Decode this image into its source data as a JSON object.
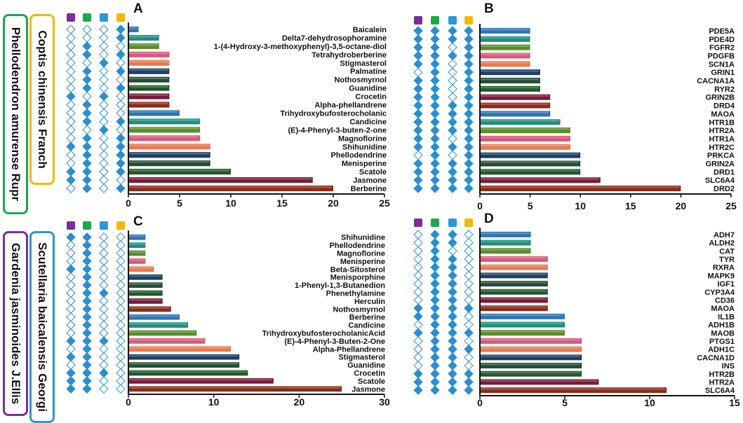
{
  "herb_labels": {
    "phellodendron": {
      "text": "Phellodendron amurense Rupr",
      "color": "#1aaa4a"
    },
    "coptis": {
      "text": "Coptis chinensis Franch",
      "color": "#f5b800"
    },
    "gardenia": {
      "text": "Gardenia jasminoides J.Ellis",
      "color": "#7b2e9a"
    },
    "scutellaria": {
      "text": "Scutellaria baicalensis Georgi",
      "color": "#2a98d8"
    }
  },
  "legend_colors": [
    "#7b2e9a",
    "#1aaa4a",
    "#2a98d8",
    "#f5b800"
  ],
  "marker_color": "#2a8fcf",
  "chart_data": [
    {
      "panel": "A",
      "type": "bar",
      "orientation": "horizontal",
      "xlim": [
        0,
        25
      ],
      "xticks": [
        0,
        5,
        10,
        15,
        20,
        25
      ],
      "categories": [
        "Baicalein",
        "Delta7-dehydrosophoramine",
        "1-(4-Hydroxy-3-methoxyphenyl)-3,5-octane-diol",
        "Tetrahydroberberine",
        "Stigmasterol",
        "Palmatine",
        "Nothosmyrnol",
        "Guanidine",
        "Crocetin",
        "Alpha-phellandrene",
        "Trihydroxybufosterocholanic",
        "Candicine",
        "(E)-4-Phenyl-3-buten-2-one",
        "Magnoflorine",
        "Shihunidine",
        "Phellodendrine",
        "Menisperine",
        "Scatole",
        "Jasmone",
        "Berberine"
      ],
      "values": [
        1,
        3,
        3,
        4,
        4,
        4,
        4,
        4,
        4,
        4,
        5,
        7,
        7,
        7,
        8,
        8,
        8,
        10,
        18,
        20
      ],
      "membership": [
        [
          0,
          0,
          0,
          1
        ],
        [
          0,
          0,
          0,
          1
        ],
        [
          0,
          1,
          0,
          0
        ],
        [
          0,
          1,
          0,
          1
        ],
        [
          0,
          0,
          1,
          0
        ],
        [
          0,
          1,
          0,
          1
        ],
        [
          0,
          1,
          0,
          0
        ],
        [
          0,
          1,
          0,
          1
        ],
        [
          1,
          0,
          1,
          0
        ],
        [
          0,
          1,
          0,
          0
        ],
        [
          0,
          1,
          0,
          0
        ],
        [
          0,
          1,
          0,
          1
        ],
        [
          0,
          0,
          1,
          0
        ],
        [
          0,
          1,
          0,
          1
        ],
        [
          1,
          1,
          0,
          1
        ],
        [
          0,
          1,
          0,
          1
        ],
        [
          0,
          1,
          0,
          1
        ],
        [
          1,
          1,
          0,
          1
        ],
        [
          1,
          1,
          0,
          0
        ],
        [
          0,
          1,
          0,
          1
        ]
      ]
    },
    {
      "panel": "B",
      "type": "bar",
      "orientation": "horizontal",
      "xlim": [
        0,
        25
      ],
      "xticks": [
        0,
        5,
        10,
        15,
        20,
        25
      ],
      "categories": [
        "PDE5A",
        "PDE4D",
        "FGFR2",
        "PDGFB",
        "SCN1A",
        "GRIN1",
        "CACNA1A",
        "RYR2",
        "GRIN2B",
        "DRD4",
        "MAOA",
        "HTR1B",
        "HTR2A",
        "HTR1A",
        "HTR2C",
        "PRKCA",
        "GRIN2A",
        "DRD1",
        "SLC6A4",
        "DRD2"
      ],
      "values": [
        5,
        5,
        5,
        5,
        5,
        6,
        6,
        6,
        7,
        7,
        7,
        8,
        9,
        9,
        9,
        10,
        10,
        10,
        12,
        20
      ],
      "membership": [
        [
          1,
          1,
          1,
          1
        ],
        [
          1,
          1,
          1,
          1
        ],
        [
          1,
          1,
          0,
          1
        ],
        [
          1,
          1,
          1,
          1
        ],
        [
          1,
          1,
          0,
          1
        ],
        [
          0,
          1,
          0,
          1
        ],
        [
          1,
          1,
          0,
          1
        ],
        [
          1,
          1,
          0,
          1
        ],
        [
          1,
          1,
          0,
          1
        ],
        [
          1,
          1,
          1,
          1
        ],
        [
          1,
          1,
          1,
          1
        ],
        [
          1,
          1,
          1,
          1
        ],
        [
          1,
          1,
          1,
          1
        ],
        [
          1,
          1,
          0,
          1
        ],
        [
          1,
          1,
          1,
          1
        ],
        [
          0,
          1,
          0,
          1
        ],
        [
          1,
          1,
          1,
          1
        ],
        [
          1,
          1,
          1,
          1
        ],
        [
          1,
          1,
          1,
          1
        ],
        [
          1,
          1,
          1,
          1
        ]
      ]
    },
    {
      "panel": "C",
      "type": "bar",
      "orientation": "horizontal",
      "xlim": [
        0,
        30
      ],
      "xticks": [
        0,
        10,
        20,
        30
      ],
      "categories": [
        "Shihunidine",
        "Phellodendrine",
        "Magnoflorine",
        "Menisperine",
        "Beta-Sitosterol",
        "Menisporphine",
        "1-Phenyl-1,3-Butanedion",
        "Phenethylamine",
        "Herculin",
        "Nothosmyrnol",
        "Berberine",
        "Candicine",
        "TrihydroxybufosterocholanicAcid",
        "(E)-4-Phenyl-3-Buten-2-One",
        "Alpha-Phellandrene",
        "Stigmasterol",
        "Guanidine",
        "Crocetin",
        "Scatole",
        "Jasmone"
      ],
      "values": [
        2,
        2,
        2,
        2,
        3,
        4,
        4,
        4,
        4,
        5,
        6,
        7,
        8,
        9,
        12,
        13,
        13,
        14,
        17,
        25
      ],
      "membership": [
        [
          1,
          1,
          0,
          0
        ],
        [
          0,
          1,
          0,
          0
        ],
        [
          0,
          1,
          0,
          0
        ],
        [
          0,
          1,
          0,
          0
        ],
        [
          1,
          1,
          0,
          0
        ],
        [
          0,
          1,
          0,
          0
        ],
        [
          0,
          1,
          0,
          0
        ],
        [
          0,
          1,
          1,
          0
        ],
        [
          0,
          1,
          0,
          0
        ],
        [
          0,
          1,
          0,
          0
        ],
        [
          0,
          1,
          0,
          0
        ],
        [
          0,
          1,
          0,
          0
        ],
        [
          0,
          1,
          0,
          0
        ],
        [
          1,
          1,
          1,
          0
        ],
        [
          0,
          1,
          0,
          0
        ],
        [
          1,
          1,
          0,
          0
        ],
        [
          0,
          1,
          0,
          0
        ],
        [
          1,
          1,
          1,
          0
        ],
        [
          1,
          1,
          0,
          0
        ],
        [
          1,
          1,
          0,
          0
        ]
      ]
    },
    {
      "panel": "D",
      "type": "bar",
      "orientation": "horizontal",
      "xlim": [
        0,
        15
      ],
      "xticks": [
        0,
        5,
        10,
        15
      ],
      "categories": [
        "ADH7",
        "ALDH2",
        "CAT",
        "TYR",
        "RXRA",
        "MAPK9",
        "IGF1",
        "CYP3A4",
        "CD36",
        "MAOA",
        "IL1B",
        "ADH1B",
        "MAOB",
        "PTGS1",
        "ADH1C",
        "CACNA1D",
        "INS",
        "HTR2B",
        "HTR2A",
        "SLC6A4"
      ],
      "values": [
        3,
        3,
        3,
        4,
        4,
        4,
        4,
        4,
        4,
        4,
        5,
        5,
        5,
        6,
        6,
        6,
        6,
        6,
        7,
        11
      ],
      "membership": [
        [
          0,
          1,
          1,
          0
        ],
        [
          0,
          1,
          1,
          0
        ],
        [
          0,
          1,
          0,
          0
        ],
        [
          0,
          1,
          1,
          0
        ],
        [
          0,
          1,
          1,
          0
        ],
        [
          0,
          1,
          1,
          0
        ],
        [
          0,
          1,
          1,
          0
        ],
        [
          0,
          1,
          1,
          0
        ],
        [
          0,
          1,
          1,
          0
        ],
        [
          1,
          1,
          1,
          1
        ],
        [
          1,
          1,
          1,
          0
        ],
        [
          0,
          1,
          1,
          0
        ],
        [
          1,
          1,
          1,
          1
        ],
        [
          0,
          1,
          1,
          0
        ],
        [
          0,
          1,
          1,
          1
        ],
        [
          0,
          1,
          1,
          0
        ],
        [
          0,
          1,
          1,
          0
        ],
        [
          1,
          1,
          1,
          1
        ],
        [
          1,
          1,
          1,
          1
        ],
        [
          1,
          1,
          1,
          1
        ]
      ]
    }
  ]
}
